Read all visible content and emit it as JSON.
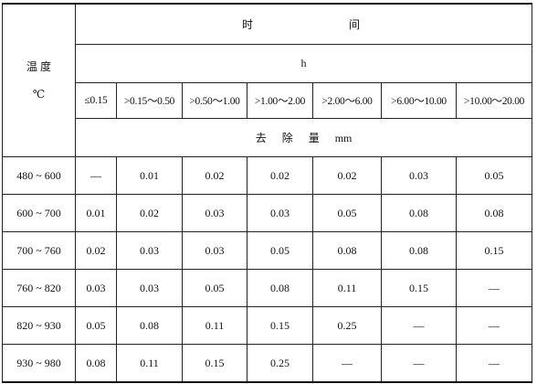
{
  "table": {
    "temperature_header": "温 度",
    "temperature_unit": "℃",
    "time_header": "时 间",
    "time_unit": "h",
    "intervals": [
      "≤0.15",
      ">0.15～0.50",
      ">0.50～1.00",
      ">1.00～2.00",
      ">2.00～6.00",
      ">6.00～10.00",
      ">10.00～20.00"
    ],
    "removal_header": "去 除 量 mm",
    "rows": [
      {
        "temperature": "480 ~ 600",
        "values": [
          "—",
          0.01,
          0.02,
          0.02,
          0.02,
          0.03,
          0.05
        ]
      },
      {
        "temperature": "600 ~ 700",
        "values": [
          0.01,
          0.02,
          0.03,
          0.03,
          0.05,
          0.08,
          0.08
        ]
      },
      {
        "temperature": "700 ~ 760",
        "values": [
          0.02,
          0.03,
          0.03,
          0.05,
          0.08,
          0.08,
          0.15
        ]
      },
      {
        "temperature": "760 ~ 820",
        "values": [
          0.03,
          0.03,
          0.05,
          0.08,
          0.11,
          0.15,
          "—"
        ]
      },
      {
        "temperature": "820 ~ 930",
        "values": [
          0.05,
          0.08,
          0.11,
          0.15,
          0.25,
          "—",
          "—"
        ]
      },
      {
        "temperature": "930 ~ 980",
        "values": [
          0.08,
          0.11,
          0.15,
          0.25,
          "—",
          "—",
          "—"
        ]
      }
    ]
  }
}
